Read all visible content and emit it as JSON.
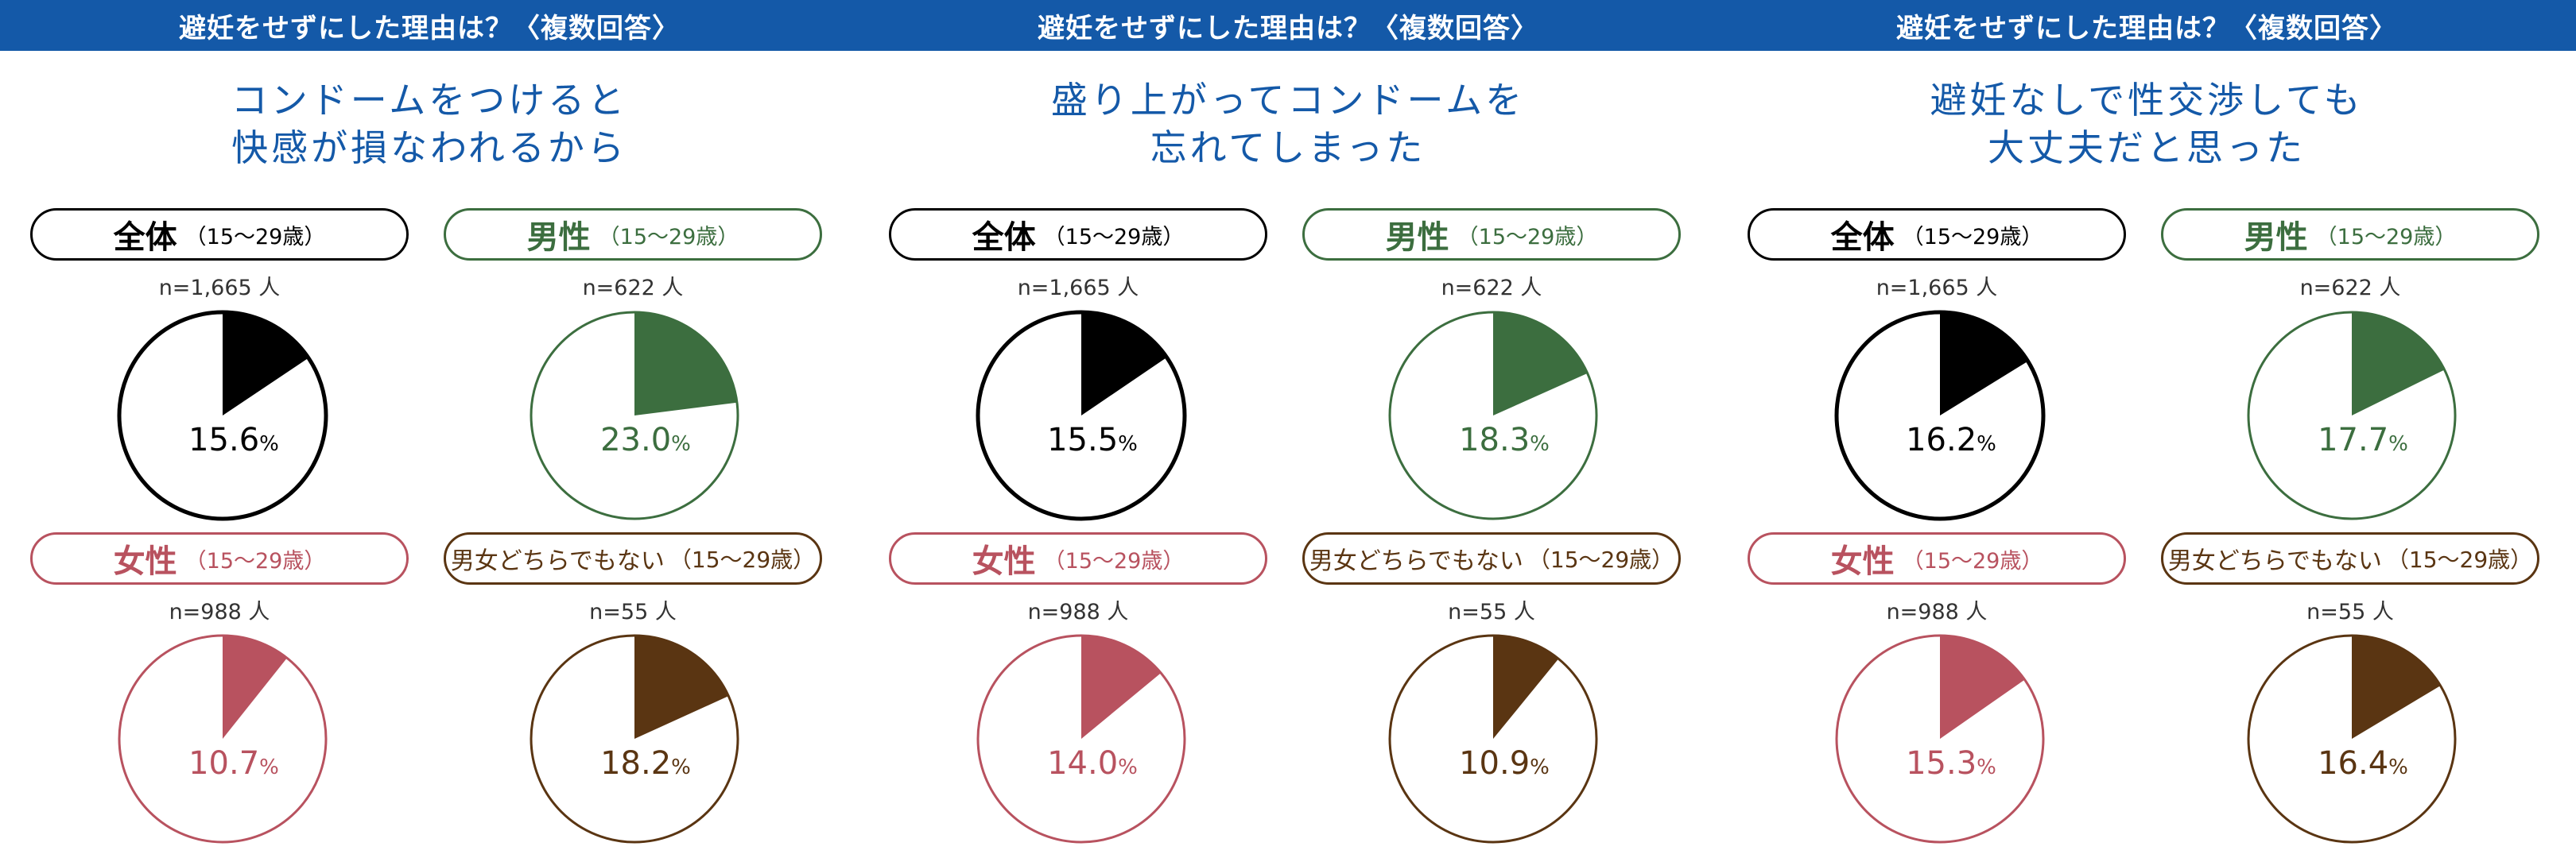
{
  "colors": {
    "banner": "#1459a8",
    "total": "#000000",
    "male": "#3c6e3f",
    "female": "#b8525f",
    "other": "#5a3512"
  },
  "groups": [
    {
      "key": "total",
      "name": "全体",
      "age": "（15〜29歳）",
      "n": "n=1,665 人"
    },
    {
      "key": "male",
      "name": "男性",
      "age": "（15〜29歳）",
      "n": "n=622 人"
    },
    {
      "key": "female",
      "name": "女性",
      "age": "（15〜29歳）",
      "n": "n=988 人"
    },
    {
      "key": "other",
      "name": "男女どちらでもない",
      "age": "（15〜29歳）",
      "n": "n=55 人"
    }
  ],
  "panels": [
    {
      "banner": "避妊をせずにした理由は？〈複数回答〉",
      "question": [
        "コンドームをつけると",
        "快感が損なわれるから"
      ]
    },
    {
      "banner": "避妊をせずにした理由は？〈複数回答〉",
      "question": [
        "盛り上がってコンドームを",
        "忘れてしまった"
      ]
    },
    {
      "banner": "避妊をせずにした理由は？〈複数回答〉",
      "question": [
        "避妊なしで性交渉しても",
        "大丈夫だと思った"
      ]
    }
  ],
  "chart_data": [
    {
      "type": "pie",
      "title": "コンドームをつけると快感が損なわれるから",
      "unit": "%",
      "series": [
        {
          "name": "全体（15〜29歳）",
          "value": 15.6
        },
        {
          "name": "男性（15〜29歳）",
          "value": 23.0
        },
        {
          "name": "女性（15〜29歳）",
          "value": 10.7
        },
        {
          "name": "男女どちらでもない（15〜29歳）",
          "value": 18.2
        }
      ]
    },
    {
      "type": "pie",
      "title": "盛り上がってコンドームを忘れてしまった",
      "unit": "%",
      "series": [
        {
          "name": "全体（15〜29歳）",
          "value": 15.5
        },
        {
          "name": "男性（15〜29歳）",
          "value": 18.3
        },
        {
          "name": "女性（15〜29歳）",
          "value": 14.0
        },
        {
          "name": "男女どちらでもない（15〜29歳）",
          "value": 10.9
        }
      ]
    },
    {
      "type": "pie",
      "title": "避妊なしで性交渉しても大丈夫だと思った",
      "unit": "%",
      "series": [
        {
          "name": "全体（15〜29歳）",
          "value": 16.2
        },
        {
          "name": "男性（15〜29歳）",
          "value": 17.7
        },
        {
          "name": "女性（15〜29歳）",
          "value": 15.3
        },
        {
          "name": "男女どちらでもない（15〜29歳）",
          "value": 16.4
        }
      ]
    }
  ]
}
